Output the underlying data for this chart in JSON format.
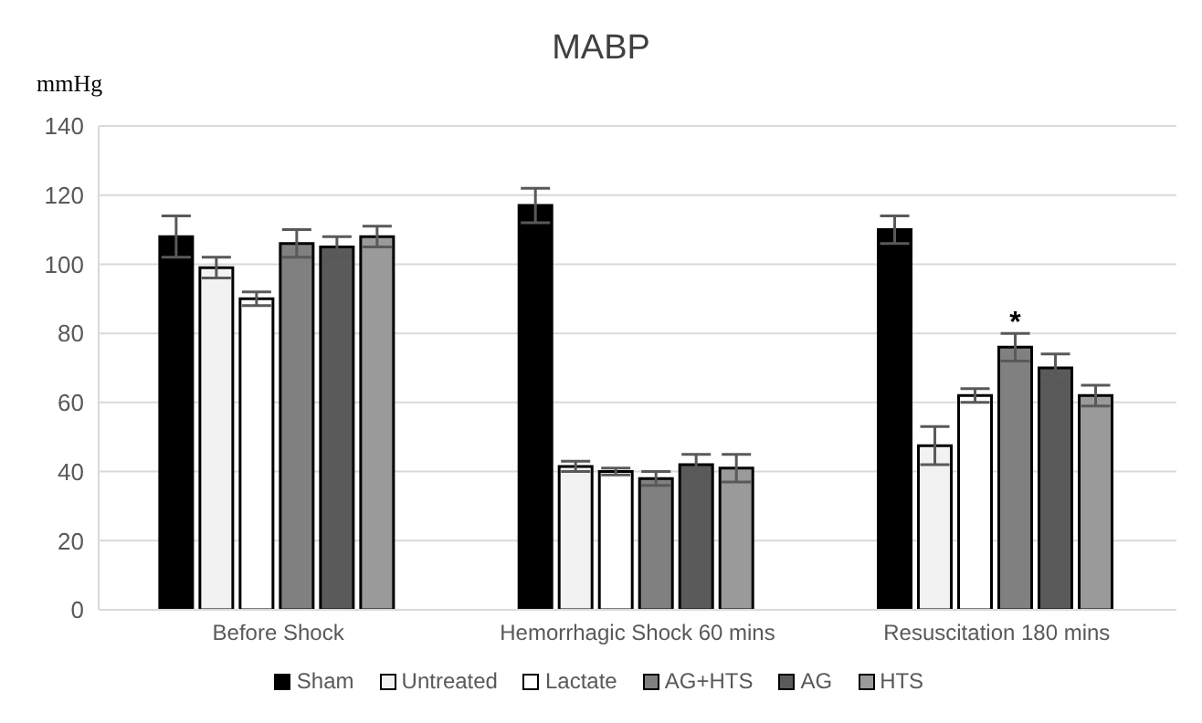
{
  "chart_data": {
    "type": "bar",
    "title": "MABP",
    "ylabel": "mmHg",
    "categories": [
      "Before Shock",
      "Hemorrhagic Shock 60 mins",
      "Resuscitation 180 mins"
    ],
    "series": [
      {
        "name": "Sham",
        "color": "#000000",
        "values": [
          108,
          117,
          110
        ],
        "errors": [
          6,
          5,
          4
        ]
      },
      {
        "name": "Untreated",
        "color": "#f2f2f2",
        "values": [
          99,
          41.5,
          47.5
        ],
        "errors": [
          3,
          1.5,
          5.5
        ]
      },
      {
        "name": "Lactate",
        "color": "#ffffff",
        "values": [
          90,
          40,
          62
        ],
        "errors": [
          2,
          1,
          2
        ]
      },
      {
        "name": "AG+HTS",
        "color": "#808080",
        "values": [
          106,
          38,
          76
        ],
        "errors": [
          4,
          2,
          4
        ]
      },
      {
        "name": "AG",
        "color": "#5a5a5a",
        "values": [
          105,
          42,
          70
        ],
        "errors": [
          3,
          3,
          4
        ]
      },
      {
        "name": "HTS",
        "color": "#9a9a9a",
        "values": [
          108,
          41,
          62
        ],
        "errors": [
          3,
          4,
          3
        ]
      }
    ],
    "ylim": [
      0,
      140
    ],
    "yticks": [
      0,
      20,
      40,
      60,
      80,
      100,
      120,
      140
    ],
    "grid": "y",
    "legend": "bottom",
    "annotations": [
      {
        "text": "*",
        "x": "Resuscitation 180 mins",
        "y": 80
      }
    ]
  }
}
